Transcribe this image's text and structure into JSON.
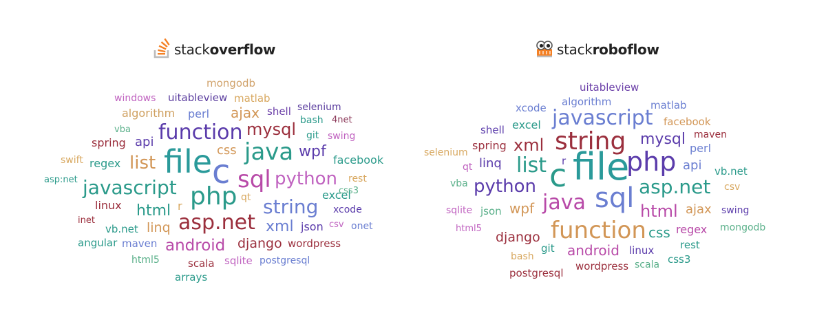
{
  "left": {
    "logo": {
      "brand_plain": "stack",
      "brand_bold": "overflow",
      "icon": "stackoverflow-logo-icon"
    },
    "words": [
      {
        "text": "mongodb",
        "color": "#d1a36c"
      },
      {
        "text": "windows",
        "color": "#c063c0"
      },
      {
        "text": "uitableview",
        "color": "#5a3c9e"
      },
      {
        "text": "matlab",
        "color": "#d8a860"
      },
      {
        "text": "algorithm",
        "color": "#cfa060"
      },
      {
        "text": "perl",
        "color": "#6a7ed1"
      },
      {
        "text": "ajax",
        "color": "#d29656"
      },
      {
        "text": "shell",
        "color": "#6b3fa8"
      },
      {
        "text": "selenium",
        "color": "#5a3c9e"
      },
      {
        "text": "bash",
        "color": "#2a9a8a"
      },
      {
        "text": "4net",
        "color": "#8c3a5a"
      },
      {
        "text": "vba",
        "color": "#5ab08a"
      },
      {
        "text": "function",
        "color": "#5b3cab"
      },
      {
        "text": "mysql",
        "color": "#9b2f3d"
      },
      {
        "text": "git",
        "color": "#2a9a8a"
      },
      {
        "text": "swing",
        "color": "#c063c0"
      },
      {
        "text": "spring",
        "color": "#9b2f3d"
      },
      {
        "text": "api",
        "color": "#5b3cab"
      },
      {
        "text": "css",
        "color": "#d29656"
      },
      {
        "text": "java",
        "color": "#2a9a8a"
      },
      {
        "text": "wpf",
        "color": "#5b3cab"
      },
      {
        "text": "swift",
        "color": "#d8a860"
      },
      {
        "text": "file",
        "color": "#2a9a9a"
      },
      {
        "text": "c",
        "color": "#6a7ed1"
      },
      {
        "text": "facebook",
        "color": "#2a9a8a"
      },
      {
        "text": "regex",
        "color": "#2a9a8a"
      },
      {
        "text": "list",
        "color": "#d29656"
      },
      {
        "text": "sql",
        "color": "#b84aa8"
      },
      {
        "text": "python",
        "color": "#c063c0"
      },
      {
        "text": "asp:net",
        "color": "#2a9a8a"
      },
      {
        "text": "rest",
        "color": "#d8a860"
      },
      {
        "text": "javascript",
        "color": "#2a9a8a"
      },
      {
        "text": "css3",
        "color": "#5ab08a"
      },
      {
        "text": "php",
        "color": "#2a9a8a"
      },
      {
        "text": "qt",
        "color": "#d8a860"
      },
      {
        "text": "linux",
        "color": "#9b2f3d"
      },
      {
        "text": "excel",
        "color": "#2a9a8a"
      },
      {
        "text": "string",
        "color": "#6a7ed1"
      },
      {
        "text": "html",
        "color": "#2a9a8a"
      },
      {
        "text": "r",
        "color": "#d8a860"
      },
      {
        "text": "xcode",
        "color": "#5b3cab"
      },
      {
        "text": "inet",
        "color": "#9b2f3d"
      },
      {
        "text": "asp.net",
        "color": "#9b2f3d"
      },
      {
        "text": "csv",
        "color": "#c063c0"
      },
      {
        "text": "onet",
        "color": "#6a7ed1"
      },
      {
        "text": "vb.net",
        "color": "#2a9a8a"
      },
      {
        "text": "linq",
        "color": "#d29656"
      },
      {
        "text": "xml",
        "color": "#6a7ed1"
      },
      {
        "text": "json",
        "color": "#5b3cab"
      },
      {
        "text": "angular",
        "color": "#2a9a8a"
      },
      {
        "text": "maven",
        "color": "#6a7ed1"
      },
      {
        "text": "android",
        "color": "#b84aa8"
      },
      {
        "text": "django",
        "color": "#9b2f3d"
      },
      {
        "text": "wordpress",
        "color": "#9b2f3d"
      },
      {
        "text": "html5",
        "color": "#5ab08a"
      },
      {
        "text": "scala",
        "color": "#9b2f3d"
      },
      {
        "text": "sqlite",
        "color": "#c063c0"
      },
      {
        "text": "postgresql",
        "color": "#6a7ed1"
      },
      {
        "text": "arrays",
        "color": "#2a9a8a"
      }
    ]
  },
  "right": {
    "logo": {
      "brand_plain": "stack",
      "brand_bold": "roboflow",
      "icon": "stackroboflow-logo-icon"
    },
    "words": [
      {
        "text": "uitableview",
        "color": "#6b3fa8"
      },
      {
        "text": "algorithm",
        "color": "#6a7ed1"
      },
      {
        "text": "xcode",
        "color": "#6a7ed1"
      },
      {
        "text": "matlab",
        "color": "#6a7ed1"
      },
      {
        "text": "javascript",
        "color": "#6a7ed1"
      },
      {
        "text": "excel",
        "color": "#2a9a8a"
      },
      {
        "text": "facebook",
        "color": "#d29656"
      },
      {
        "text": "shell",
        "color": "#5b3cab"
      },
      {
        "text": "maven",
        "color": "#9b2f3d"
      },
      {
        "text": "string",
        "color": "#9b2f3d"
      },
      {
        "text": "mysql",
        "color": "#5b3cab"
      },
      {
        "text": "selenium",
        "color": "#d8a860"
      },
      {
        "text": "spring",
        "color": "#9b2f3d"
      },
      {
        "text": "xml",
        "color": "#9b2f3d"
      },
      {
        "text": "perl",
        "color": "#6a7ed1"
      },
      {
        "text": "qt",
        "color": "#c063c0"
      },
      {
        "text": "linq",
        "color": "#5b3cab"
      },
      {
        "text": "list",
        "color": "#2a9a8a"
      },
      {
        "text": "r",
        "color": "#5b3cab"
      },
      {
        "text": "file",
        "color": "#2a9a9a"
      },
      {
        "text": "php",
        "color": "#5b3cab"
      },
      {
        "text": "api",
        "color": "#6a7ed1"
      },
      {
        "text": "vb.net",
        "color": "#2a9a8a"
      },
      {
        "text": "vba",
        "color": "#5ab08a"
      },
      {
        "text": "python",
        "color": "#5b3cab"
      },
      {
        "text": "c",
        "color": "#2a9a8a"
      },
      {
        "text": "asp.net",
        "color": "#2a9a8a"
      },
      {
        "text": "csv",
        "color": "#d8a860"
      },
      {
        "text": "sql",
        "color": "#6a7ed1"
      },
      {
        "text": "java",
        "color": "#b84aa8"
      },
      {
        "text": "sqlite",
        "color": "#c063c0"
      },
      {
        "text": "json",
        "color": "#5ab08a"
      },
      {
        "text": "wpf",
        "color": "#d29656"
      },
      {
        "text": "html",
        "color": "#b84aa8"
      },
      {
        "text": "ajax",
        "color": "#d29656"
      },
      {
        "text": "swing",
        "color": "#5b3cab"
      },
      {
        "text": "html5",
        "color": "#c063c0"
      },
      {
        "text": "function",
        "color": "#d29656"
      },
      {
        "text": "css",
        "color": "#2a9a8a"
      },
      {
        "text": "regex",
        "color": "#b84aa8"
      },
      {
        "text": "mongodb",
        "color": "#5ab08a"
      },
      {
        "text": "django",
        "color": "#9b2f3d"
      },
      {
        "text": "git",
        "color": "#2a9a8a"
      },
      {
        "text": "android",
        "color": "#b84aa8"
      },
      {
        "text": "linux",
        "color": "#5b3cab"
      },
      {
        "text": "rest",
        "color": "#2a9a8a"
      },
      {
        "text": "bash",
        "color": "#d8a860"
      },
      {
        "text": "wordpress",
        "color": "#9b2f3d"
      },
      {
        "text": "scala",
        "color": "#5ab08a"
      },
      {
        "text": "css3",
        "color": "#2a9a8a"
      },
      {
        "text": "postgresql",
        "color": "#9b2f3d"
      }
    ]
  }
}
